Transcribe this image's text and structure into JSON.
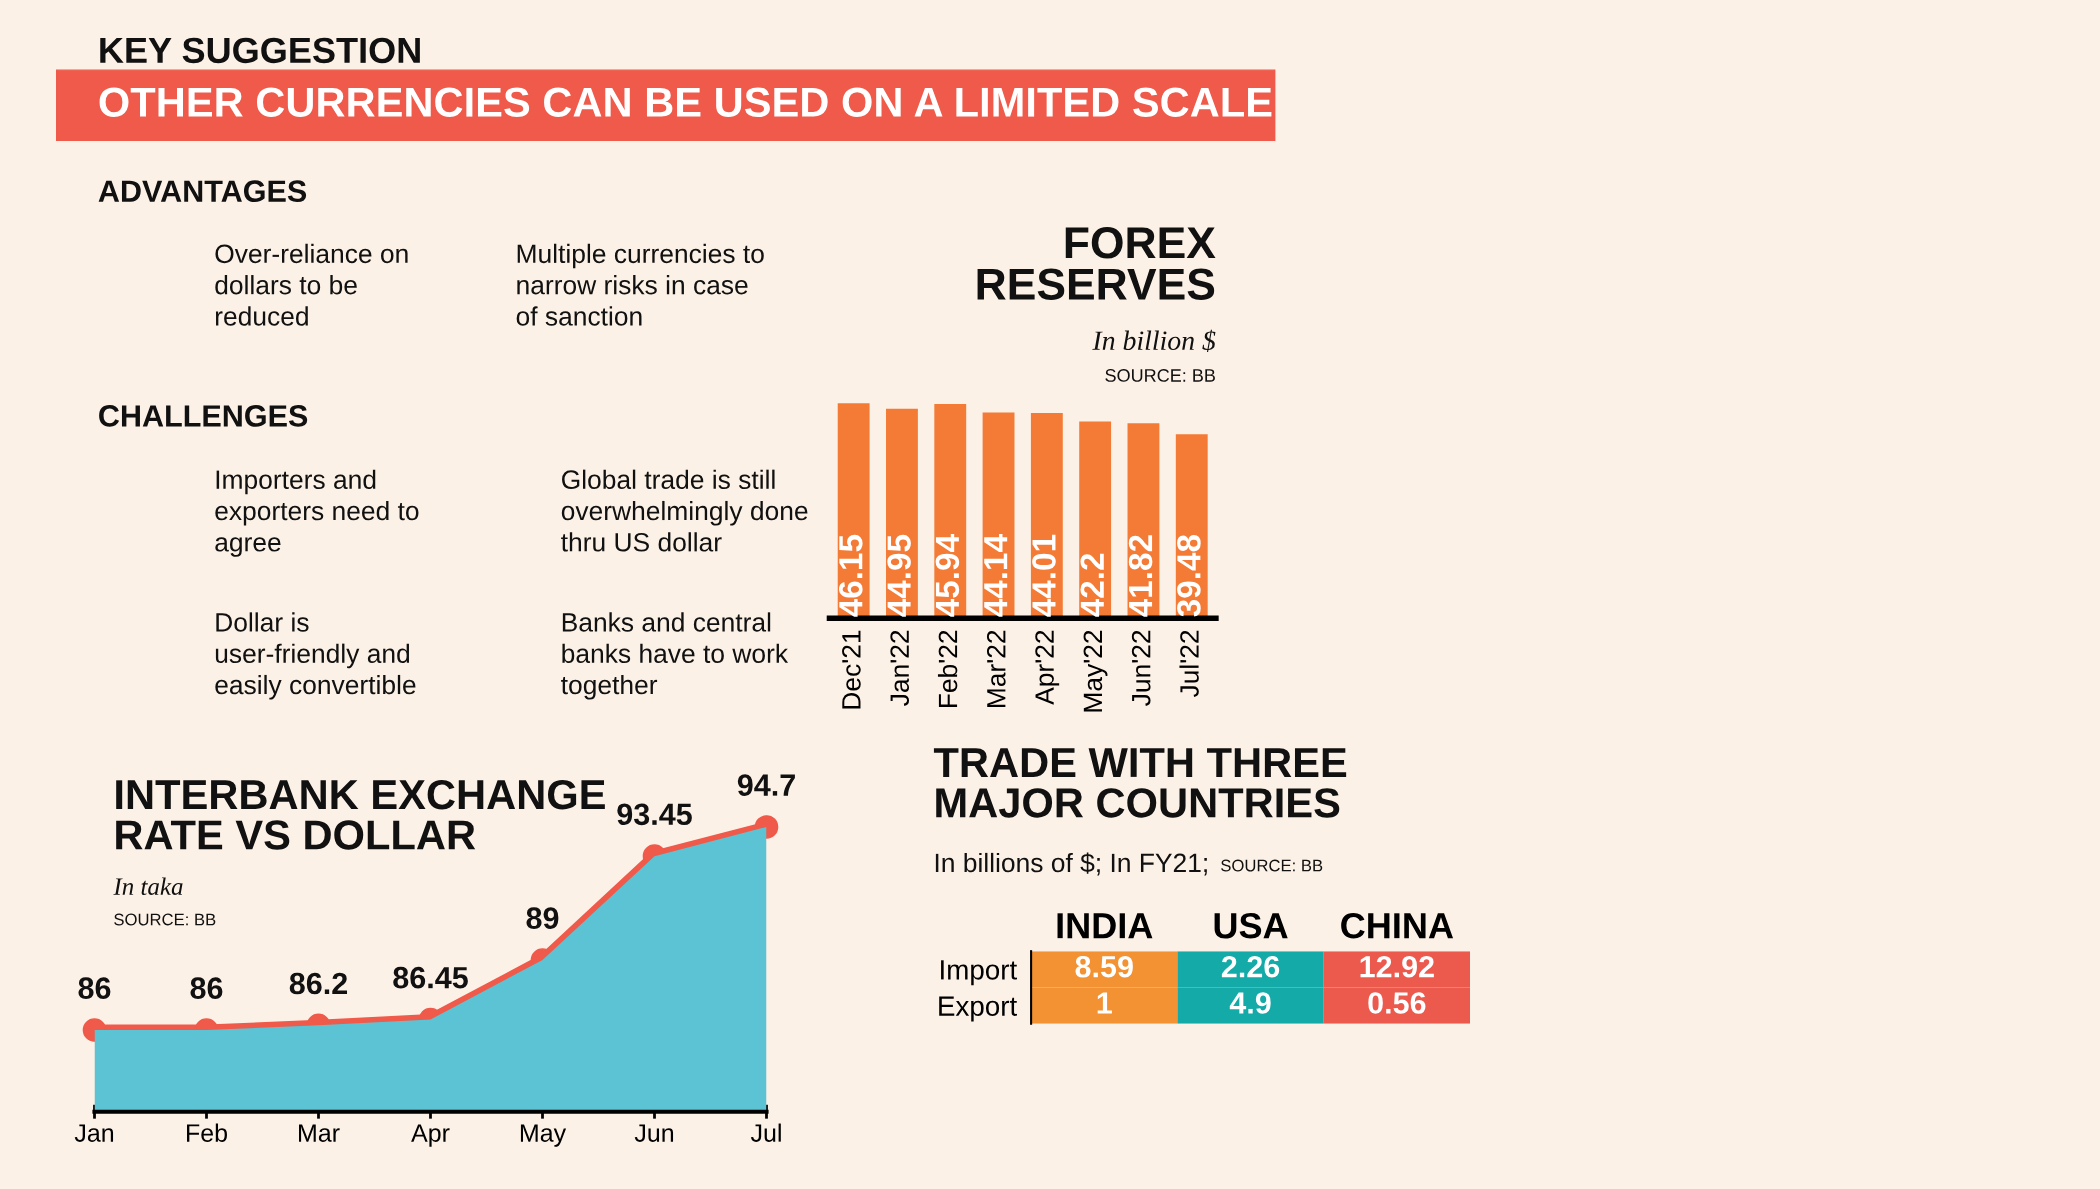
{
  "chart_data": [
    {
      "type": "other",
      "title": "KEY SUGGESTION",
      "subtitle": "OTHER CURRENCIES CAN BE USED ON A LIMITED SCALE",
      "annotations": [
        "ADVANTAGES",
        "Over-reliance on dollars to be reduced",
        "Multiple currencies to narrow risks in case of sanction",
        "CHALLENGES",
        "Importers and exporters need to agree",
        "Global trade is still overwhelmingly done thru US dollar",
        "Dollar is user-friendly and easily convertible",
        "Banks and central banks have to work together"
      ]
    },
    {
      "type": "bar",
      "title": "FOREX RESERVES",
      "subtitle": "In billion $",
      "annotations": [
        "SOURCE: BB"
      ],
      "categories": [
        "Dec'21",
        "Jan'22",
        "Feb'22",
        "Mar'22",
        "Apr'22",
        "May'22",
        "Jun'22",
        "Jul'22"
      ],
      "values": [
        46.15,
        44.95,
        45.94,
        44.14,
        44.01,
        42.2,
        41.82,
        39.48
      ],
      "color": "#f47b35",
      "data_labels": true
    },
    {
      "type": "line",
      "title": "INTERBANK EXCHANGE RATE VS DOLLAR",
      "subtitle": "In taka",
      "annotations": [
        "SOURCE: BB"
      ],
      "categories": [
        "Jan",
        "Feb",
        "Mar",
        "Apr",
        "May",
        "Jun",
        "Jul"
      ],
      "series": [
        {
          "type": "area",
          "color": "#5bc3d4",
          "values": [
            86,
            86,
            86.2,
            86.45,
            89,
            93.45,
            94.7
          ]
        },
        {
          "type": "line",
          "color": "#ef5a4a",
          "marker": "circle",
          "values": [
            86,
            86,
            86.2,
            86.45,
            89,
            93.45,
            94.7
          ],
          "value_labels": [
            "86",
            "86",
            "86.2",
            "86.45",
            "89",
            "93.45",
            "94.7"
          ]
        }
      ]
    },
    {
      "type": "heatmap",
      "data_labels": true,
      "title": "TRADE WITH THREE MAJOR COUNTRIES",
      "subtitle": "In billions of $; In FY21;",
      "annotations": [
        "SOURCE: BB"
      ],
      "categories": [
        "INDIA",
        "USA",
        "CHINA"
      ],
      "y_categories": [
        "Import",
        "Export"
      ],
      "cells": [
        [
          8.59,
          2.26,
          12.92
        ],
        [
          1,
          4.9,
          0.56
        ]
      ],
      "colors": [
        "#f39233",
        "#14aaa8",
        "#ec5a4e"
      ]
    }
  ]
}
